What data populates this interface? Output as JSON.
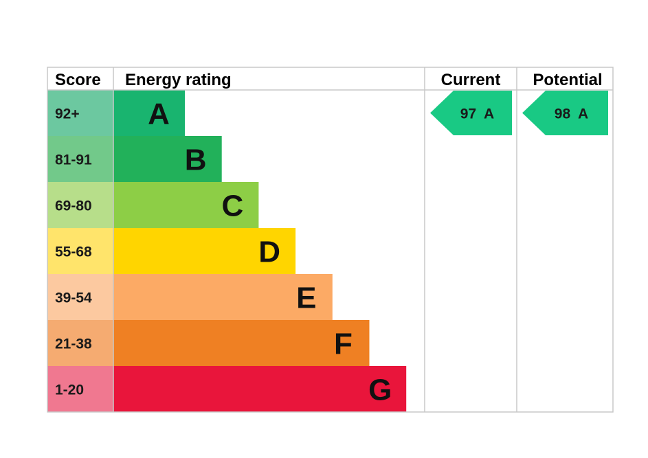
{
  "headers": {
    "score": "Score",
    "energy_rating": "Energy rating",
    "current": "Current",
    "potential": "Potential"
  },
  "chart_data": {
    "type": "bar",
    "bands": [
      {
        "letter": "A",
        "range": "92+",
        "min": 92,
        "max": 100,
        "bar_color": "#19b46f",
        "score_bg": "#6cc8a0"
      },
      {
        "letter": "B",
        "range": "81-91",
        "min": 81,
        "max": 91,
        "bar_color": "#22b15a",
        "score_bg": "#72c98a"
      },
      {
        "letter": "C",
        "range": "69-80",
        "min": 69,
        "max": 80,
        "bar_color": "#8dce46",
        "score_bg": "#b7de8a"
      },
      {
        "letter": "D",
        "range": "55-68",
        "min": 55,
        "max": 68,
        "bar_color": "#ffd500",
        "score_bg": "#ffe46b"
      },
      {
        "letter": "E",
        "range": "39-54",
        "min": 39,
        "max": 54,
        "bar_color": "#fcaa65",
        "score_bg": "#fcc9a0"
      },
      {
        "letter": "F",
        "range": "21-38",
        "min": 21,
        "max": 38,
        "bar_color": "#ef8023",
        "score_bg": "#f5ab71"
      },
      {
        "letter": "G",
        "range": "1-20",
        "min": 1,
        "max": 20,
        "bar_color": "#e9153b",
        "score_bg": "#f07890"
      }
    ],
    "current": {
      "value": 97,
      "band": "A",
      "label": "97  A",
      "color": "#19c984"
    },
    "potential": {
      "value": 98,
      "band": "A",
      "label": "98  A",
      "color": "#19c984"
    }
  },
  "colors": {
    "border": "#c8c8c8",
    "background": "#ffffff"
  }
}
